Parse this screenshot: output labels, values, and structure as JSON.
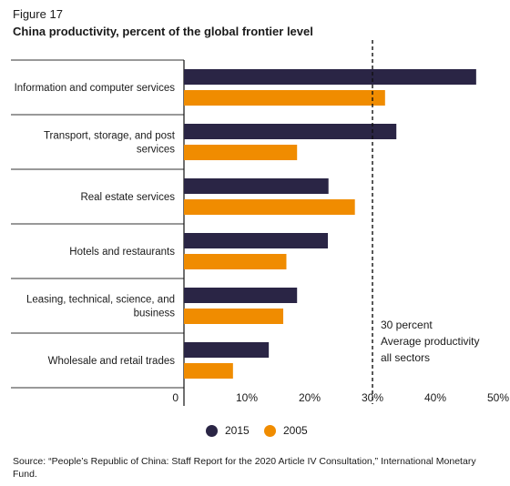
{
  "figure_label": "Figure 17",
  "title": "China productivity, percent of the global frontier level",
  "source": "Source: “People’s Republic of China: Staff Report for the 2020 Article IV Consultation,” International Monetary Fund.",
  "chart_data": {
    "type": "bar",
    "orientation": "horizontal",
    "title": "China productivity, percent of the global frontier level",
    "categories": [
      [
        "Information and computer services"
      ],
      [
        "Transport, storage, and post",
        "services"
      ],
      [
        "Real estate services"
      ],
      [
        "Hotels and restaurants"
      ],
      [
        "Leasing, technical, science, and",
        "business"
      ],
      [
        "Wholesale and retail trades"
      ]
    ],
    "series": [
      {
        "name": "2015",
        "color": "#2a2545",
        "values": [
          46.5,
          33.8,
          23.0,
          22.9,
          18.0,
          13.5
        ]
      },
      {
        "name": "2005",
        "color": "#f08c00",
        "values": [
          32.0,
          18.0,
          27.2,
          16.3,
          15.8,
          7.8
        ]
      }
    ],
    "xlim": [
      0,
      50
    ],
    "xticks": [
      "0",
      "10%",
      "20%",
      "30%",
      "40%",
      "50%"
    ],
    "xtick_values": [
      0,
      10,
      20,
      30,
      40,
      50
    ],
    "reference_line": {
      "value": 30,
      "style": "dashed",
      "label": [
        "30 percent",
        "Average productivity",
        "all sectors"
      ]
    },
    "legend_position": "bottom-center",
    "grid": false
  }
}
